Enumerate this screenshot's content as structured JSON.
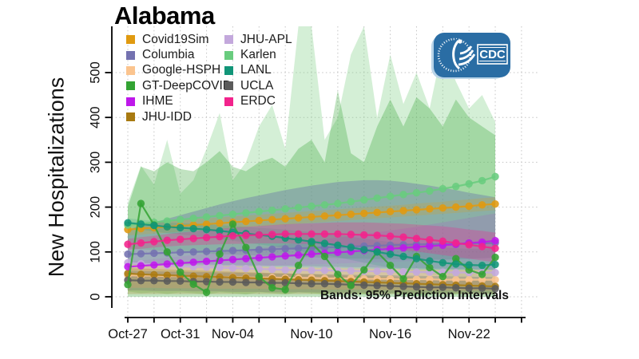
{
  "title": "Alabama",
  "y_axis": {
    "label": "New Hospitalizations",
    "ticks": [
      0,
      100,
      200,
      300,
      400,
      500
    ]
  },
  "x_axis": {
    "labeled_ticks": [
      {
        "label": "Oct-27",
        "day": 0
      },
      {
        "label": "Oct-31",
        "day": 4
      },
      {
        "label": "Nov-04",
        "day": 8
      },
      {
        "label": "Nov-10",
        "day": 14
      },
      {
        "label": "Nov-16",
        "day": 20
      },
      {
        "label": "Nov-22",
        "day": 26
      }
    ]
  },
  "annotation": "Bands: 95% Prediction Intervals",
  "logo": {
    "text": "CDC",
    "color": "#2A6DA4"
  },
  "chart_data": {
    "type": "line",
    "title": "Alabama",
    "ylabel": "New Hospitalizations",
    "xlabel": "",
    "ylim": [
      0,
      500
    ],
    "grid": "dotted",
    "legend_position": "top-left",
    "annotation": "Bands: 95% Prediction Intervals",
    "x": [
      "Oct-27",
      "Oct-28",
      "Oct-29",
      "Oct-30",
      "Oct-31",
      "Nov-01",
      "Nov-02",
      "Nov-03",
      "Nov-04",
      "Nov-05",
      "Nov-06",
      "Nov-07",
      "Nov-08",
      "Nov-09",
      "Nov-10",
      "Nov-11",
      "Nov-12",
      "Nov-13",
      "Nov-14",
      "Nov-15",
      "Nov-16",
      "Nov-17",
      "Nov-18",
      "Nov-19",
      "Nov-20",
      "Nov-21",
      "Nov-22",
      "Nov-23",
      "Nov-24"
    ],
    "legend": [
      {
        "label": "Covid19Sim",
        "color": "#E09A10"
      },
      {
        "label": "Columbia",
        "color": "#7472B0"
      },
      {
        "label": "Google-HSPH",
        "color": "#FBC48E"
      },
      {
        "label": "GT-DeepCOVID",
        "color": "#33A333"
      },
      {
        "label": "IHME",
        "color": "#BE18EA"
      },
      {
        "label": "JHU-IDD",
        "color": "#A87A11"
      },
      {
        "label": "JHU-APL",
        "color": "#C3A8DC"
      },
      {
        "label": "Karlen",
        "color": "#69CC7E"
      },
      {
        "label": "LANL",
        "color": "#119578"
      },
      {
        "label": "UCLA",
        "color": "#5B5B5B"
      },
      {
        "label": "ERDC",
        "color": "#F2238C"
      }
    ],
    "series": [
      {
        "name": "Google-HSPH",
        "color": "#FBC48E",
        "values": [
          48,
          47,
          47,
          46,
          46,
          45,
          45,
          44,
          44,
          43,
          43,
          43,
          42,
          42,
          42,
          41,
          41,
          41,
          40,
          40,
          40,
          39,
          39,
          39,
          38,
          38,
          38,
          38,
          38
        ]
      },
      {
        "name": "JHU-IDD",
        "color": "#A87A11",
        "values": [
          52,
          50,
          49,
          48,
          47,
          46,
          45,
          44,
          43,
          42,
          41,
          40,
          39,
          38,
          37,
          36,
          35,
          34,
          33,
          32,
          31,
          30,
          29,
          28,
          27,
          26,
          25,
          24,
          23
        ]
      },
      {
        "name": "UCLA",
        "color": "#5B5B5B",
        "values": [
          37,
          36,
          36,
          35,
          35,
          34,
          34,
          33,
          33,
          32,
          32,
          31,
          31,
          30,
          29,
          29,
          28,
          27,
          26,
          25,
          24,
          23,
          22,
          21,
          21,
          20,
          19,
          19,
          18
        ]
      },
      {
        "name": "JHU-APL",
        "color": "#C3A8DC",
        "values": [
          76,
          74,
          72,
          70,
          68,
          67,
          66,
          65,
          64,
          63,
          62,
          61,
          60,
          60,
          59,
          59,
          58,
          58,
          57,
          57,
          56,
          56,
          55,
          55,
          55,
          54,
          54,
          54,
          54
        ]
      },
      {
        "name": "Columbia",
        "color": "#7472B0",
        "values": [
          95,
          96,
          97,
          98,
          99,
          100,
          101,
          102,
          103,
          104,
          105,
          106,
          107,
          108,
          109,
          110,
          111,
          112,
          113,
          114,
          115,
          116,
          117,
          117,
          118,
          118,
          119,
          119,
          120
        ]
      },
      {
        "name": "IHME",
        "color": "#BE18EA",
        "values": [
          67,
          69,
          71,
          73,
          75,
          77,
          79,
          81,
          83,
          85,
          87,
          89,
          91,
          93,
          95,
          97,
          99,
          101,
          103,
          105,
          107,
          109,
          111,
          113,
          115,
          117,
          120,
          122,
          125
        ]
      },
      {
        "name": "Covid19Sim",
        "color": "#E09A10",
        "values": [
          150,
          152,
          154,
          156,
          158,
          160,
          162,
          164,
          166,
          168,
          170,
          172,
          174,
          176,
          178,
          180,
          182,
          184,
          186,
          188,
          190,
          192,
          194,
          196,
          198,
          200,
          202,
          205,
          207
        ]
      },
      {
        "name": "Karlen",
        "color": "#69CC7E",
        "values": [
          160,
          163,
          166,
          169,
          172,
          175,
          178,
          181,
          184,
          187,
          190,
          193,
          196,
          199,
          202,
          205,
          208,
          212,
          216,
          220,
          224,
          228,
          232,
          236,
          241,
          246,
          252,
          259,
          268
        ]
      },
      {
        "name": "GT-DeepCOVID",
        "color": "#33A333",
        "values": [
          27,
          208,
          160,
          100,
          55,
          28,
          10,
          95,
          162,
          110,
          45,
          20,
          16,
          70,
          120,
          90,
          50,
          25,
          60,
          100,
          70,
          40,
          90,
          65,
          45,
          85,
          60,
          50,
          88
        ]
      },
      {
        "name": "LANL",
        "color": "#119578",
        "values": [
          165,
          162,
          159,
          156,
          154,
          152,
          150,
          147,
          144,
          141,
          138,
          135,
          131,
          127,
          123,
          119,
          115,
          110,
          105,
          100,
          95,
          90,
          85,
          80,
          76,
          73,
          71,
          70,
          72
        ]
      },
      {
        "name": "ERDC",
        "color": "#F2238C",
        "values": [
          117,
          120,
          123,
          126,
          128,
          130,
          132,
          134,
          136,
          137,
          138,
          139,
          140,
          140,
          140,
          140,
          140,
          139,
          138,
          137,
          135,
          133,
          130,
          127,
          124,
          120,
          116,
          112,
          108
        ]
      }
    ],
    "bands_note": "95% prediction interval envelopes, drawn bottom-up",
    "bands": [
      {
        "name": "Karlen",
        "color": "#8FD694",
        "alpha": 0.38,
        "upper": [
          210,
          292,
          250,
          350,
          230,
          260,
          330,
          410,
          260,
          300,
          380,
          428,
          330,
          615,
          615,
          350,
          400,
          540,
          615,
          400,
          540,
          430,
          500,
          420,
          560,
          480,
          420,
          450,
          390
        ],
        "lower": [
          12,
          8,
          10,
          6,
          10,
          8,
          5,
          10,
          8,
          5,
          10,
          8,
          5,
          10,
          8,
          5,
          10,
          8,
          5,
          10,
          8,
          5,
          2,
          5,
          8,
          5,
          10,
          8,
          6
        ]
      },
      {
        "name": "GT-DeepCOVID",
        "color": "#33A333",
        "alpha": 0.3,
        "upper": [
          200,
          290,
          280,
          300,
          285,
          280,
          300,
          325,
          290,
          280,
          300,
          310,
          290,
          330,
          350,
          300,
          460,
          320,
          300,
          380,
          440,
          380,
          445,
          420,
          380,
          440,
          400,
          380,
          360
        ],
        "lower": [
          0,
          0,
          0,
          0,
          0,
          0,
          0,
          0,
          0,
          0,
          0,
          0,
          0,
          0,
          0,
          0,
          0,
          0,
          0,
          0,
          0,
          0,
          0,
          0,
          0,
          0,
          0,
          0,
          0
        ]
      },
      {
        "name": "Columbia",
        "color": "#6E7FA8",
        "alpha": 0.45,
        "upper": [
          150,
          158,
          166,
          174,
          182,
          190,
          198,
          206,
          213,
          220,
          226,
          232,
          238,
          243,
          248,
          252,
          256,
          258,
          260,
          260,
          259,
          256,
          252,
          248,
          243,
          238,
          232,
          227,
          222
        ],
        "lower": [
          75,
          74,
          74,
          73,
          73,
          72,
          72,
          71,
          71,
          70,
          70,
          69,
          69,
          68,
          68,
          67,
          67,
          66,
          66,
          65,
          65,
          64,
          64,
          63,
          63,
          62,
          62,
          61,
          60
        ]
      },
      {
        "name": "IHME",
        "color": "#BE18EA",
        "alpha": 0.12,
        "upper": [
          78,
          81,
          84,
          87,
          90,
          93,
          96,
          99,
          102,
          105,
          108,
          112,
          116,
          120,
          124,
          128,
          132,
          136,
          140,
          144,
          148,
          152,
          156,
          161,
          166,
          171,
          176,
          181,
          186
        ],
        "lower": [
          58,
          59,
          60,
          61,
          62,
          63,
          64,
          65,
          66,
          67,
          68,
          69,
          70,
          71,
          72,
          73,
          74,
          75,
          76,
          77,
          78,
          79,
          80,
          81,
          82,
          83,
          84,
          85,
          86
        ]
      },
      {
        "name": "JHU-APL",
        "color": "#C3A8DC",
        "alpha": 0.35,
        "upper": [
          108,
          106,
          104,
          102,
          100,
          98,
          96,
          95,
          94,
          93,
          92,
          91,
          90,
          89,
          88,
          87,
          86,
          85,
          85,
          84,
          84,
          83,
          83,
          83,
          83,
          84,
          85,
          86,
          88
        ],
        "lower": [
          42,
          41,
          40,
          39,
          38,
          37,
          36,
          36,
          35,
          35,
          34,
          34,
          33,
          33,
          32,
          32,
          31,
          31,
          30,
          30,
          30,
          29,
          29,
          29,
          28,
          28,
          28,
          27,
          27
        ]
      },
      {
        "name": "Covid19Sim",
        "color": "#E09A10",
        "alpha": 0.2,
        "upper": [
          163,
          165,
          167,
          169,
          171,
          173,
          175,
          177,
          179,
          181,
          183,
          185,
          187,
          189,
          191,
          193,
          195,
          197,
          199,
          201,
          203,
          205,
          208,
          210,
          212,
          215,
          217,
          220,
          222
        ],
        "lower": [
          137,
          139,
          141,
          143,
          145,
          147,
          149,
          151,
          153,
          155,
          157,
          159,
          161,
          163,
          165,
          167,
          169,
          171,
          173,
          175,
          177,
          179,
          181,
          183,
          185,
          187,
          189,
          191,
          193
        ]
      },
      {
        "name": "LANL",
        "color": "#119578",
        "alpha": 0.15,
        "upper": [
          175,
          172,
          169,
          166,
          164,
          163,
          162,
          160,
          158,
          156,
          154,
          152,
          150,
          147,
          144,
          141,
          138,
          134,
          130,
          126,
          122,
          118,
          115,
          112,
          110,
          108,
          107,
          107,
          108
        ],
        "lower": [
          155,
          150,
          146,
          142,
          139,
          136,
          133,
          129,
          125,
          121,
          117,
          113,
          108,
          103,
          98,
          93,
          88,
          82,
          76,
          70,
          65,
          60,
          55,
          50,
          46,
          43,
          41,
          40,
          40
        ]
      },
      {
        "name": "Google-HSPH",
        "color": "#FBC48E",
        "alpha": 0.5,
        "upper": [
          72,
          71,
          71,
          70,
          70,
          69,
          69,
          68,
          68,
          67,
          67,
          66,
          66,
          65,
          65,
          64,
          64,
          63,
          63,
          62,
          62,
          61,
          61,
          61,
          60,
          60,
          60,
          60,
          60
        ],
        "lower": [
          20,
          20,
          20,
          19,
          19,
          19,
          19,
          18,
          18,
          18,
          18,
          17,
          17,
          17,
          17,
          16,
          16,
          16,
          16,
          15,
          15,
          15,
          15,
          14,
          14,
          14,
          14,
          14,
          14
        ]
      },
      {
        "name": "JHU-IDD",
        "color": "#A87A11",
        "alpha": 0.25,
        "upper": [
          64,
          63,
          62,
          61,
          60,
          59,
          58,
          57,
          56,
          55,
          54,
          53,
          52,
          51,
          50,
          49,
          48,
          47,
          46,
          45,
          44,
          43,
          42,
          41,
          40,
          39,
          38,
          37,
          36
        ],
        "lower": [
          6,
          6,
          6,
          6,
          6,
          6,
          6,
          6,
          6,
          6,
          6,
          6,
          6,
          6,
          6,
          6,
          6,
          6,
          6,
          6,
          6,
          6,
          6,
          6,
          6,
          6,
          6,
          6,
          6
        ]
      },
      {
        "name": "UCLA",
        "color": "#707070",
        "alpha": 0.3,
        "upper": [
          58,
          57,
          57,
          56,
          56,
          55,
          55,
          54,
          54,
          53,
          53,
          52,
          52,
          51,
          51,
          50,
          50,
          49,
          49,
          48,
          48,
          47,
          47,
          46,
          46,
          45,
          45,
          44,
          44
        ],
        "lower": [
          14,
          14,
          13,
          13,
          13,
          12,
          12,
          12,
          11,
          11,
          11,
          10,
          10,
          10,
          10,
          9,
          9,
          9,
          9,
          8,
          8,
          8,
          8,
          8,
          8,
          8,
          8,
          8,
          8
        ]
      },
      {
        "name": "ERDC",
        "color": "#F2238C",
        "alpha": 0.28,
        "upper": [
          129,
          133,
          136,
          140,
          143,
          146,
          149,
          152,
          154,
          156,
          158,
          160,
          162,
          163,
          164,
          165,
          166,
          166,
          166,
          165,
          164,
          163,
          161,
          159,
          157,
          154,
          150,
          147,
          143
        ],
        "lower": [
          105,
          107,
          110,
          112,
          114,
          115,
          116,
          117,
          118,
          118,
          119,
          119,
          119,
          118,
          118,
          117,
          116,
          114,
          112,
          110,
          107,
          104,
          101,
          97,
          93,
          89,
          85,
          81,
          77
        ]
      }
    ]
  }
}
